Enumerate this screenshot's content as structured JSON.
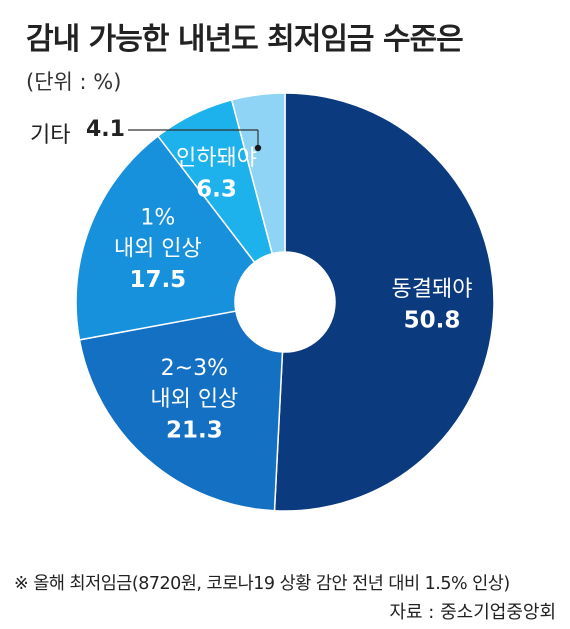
{
  "title": "감내 가능한 내년도 최저임금 수준은",
  "unit": "(단위 : %)",
  "chart_data": {
    "type": "pie",
    "donut": true,
    "slices": [
      {
        "name_lines": [
          "동결돼야"
        ],
        "value": 50.8,
        "color": "#0b3a7e"
      },
      {
        "name_lines": [
          "2~3%",
          "내외 인상"
        ],
        "value": 21.3,
        "color": "#1470c2"
      },
      {
        "name_lines": [
          "1%",
          "내외 인상"
        ],
        "value": 17.5,
        "color": "#1891dc"
      },
      {
        "name_lines": [
          "인하돼야"
        ],
        "value": 6.3,
        "color": "#1eb2ec"
      },
      {
        "name_lines": [
          "기타"
        ],
        "value": 4.1,
        "color": "#8fd3f5"
      }
    ],
    "callout": {
      "name": "기타",
      "value": "4.1"
    }
  },
  "footnote": "※ 올해 최저임금(8720원, 코로나19 상황 감안 전년 대비 1.5% 인상)",
  "source": "자료 : 중소기업중앙회"
}
